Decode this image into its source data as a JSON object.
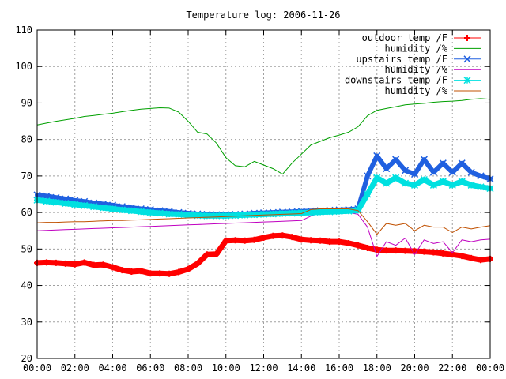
{
  "chart_data": {
    "type": "line",
    "title": "Temperature log: 2006-11-26",
    "xlabel": "",
    "ylabel": "",
    "xlim": [
      0,
      24
    ],
    "ylim": [
      20,
      110
    ],
    "grid": true,
    "legend_position": "top-right",
    "x_tick_labels": [
      "00:00",
      "02:00",
      "04:00",
      "06:00",
      "08:00",
      "10:00",
      "12:00",
      "14:00",
      "16:00",
      "18:00",
      "20:00",
      "22:00",
      "00:00"
    ],
    "y_tick_labels": [
      "20",
      "30",
      "40",
      "50",
      "60",
      "70",
      "80",
      "90",
      "100",
      "110"
    ],
    "series": [
      {
        "name": "outdoor temp /F",
        "color": "#ff0000",
        "marker": "plus",
        "x": [
          0,
          0.5,
          1,
          1.5,
          2,
          2.5,
          3,
          3.5,
          4,
          4.5,
          5,
          5.5,
          6,
          6.5,
          7,
          7.5,
          8,
          8.5,
          9,
          9.5,
          10,
          10.5,
          11,
          11.5,
          12,
          12.5,
          13,
          13.5,
          14,
          14.5,
          15,
          15.5,
          16,
          16.5,
          17,
          17.5,
          18,
          18.5,
          19,
          19.5,
          20,
          20.5,
          21,
          21.5,
          22,
          22.5,
          23,
          23.5,
          24
        ],
        "values": [
          46.2,
          46.3,
          46.2,
          46.0,
          45.8,
          46.3,
          45.6,
          45.7,
          45.0,
          44.2,
          43.8,
          44.0,
          43.3,
          43.3,
          43.2,
          43.7,
          44.5,
          46.0,
          48.5,
          48.6,
          52.3,
          52.4,
          52.3,
          52.5,
          53.1,
          53.6,
          53.7,
          53.3,
          52.6,
          52.4,
          52.3,
          52.0,
          52.0,
          51.6,
          51.0,
          50.3,
          49.8,
          49.6,
          49.6,
          49.5,
          49.4,
          49.3,
          49.1,
          48.8,
          48.5,
          48.1,
          47.5,
          47.0,
          47.3
        ]
      },
      {
        "name": "humidity /%",
        "color": "#00a000",
        "marker": "none",
        "x": [
          0,
          0.5,
          1,
          1.5,
          2,
          2.5,
          3,
          3.5,
          4,
          4.5,
          5,
          5.5,
          6,
          6.5,
          7,
          7.5,
          8,
          8.5,
          9,
          9.5,
          10,
          10.5,
          11,
          11.5,
          12,
          12.5,
          13,
          13.5,
          14,
          14.5,
          15,
          15.5,
          16,
          16.5,
          17,
          17.5,
          18,
          18.5,
          19,
          19.5,
          20,
          20.5,
          21,
          21.5,
          22,
          22.5,
          23,
          23.5,
          24
        ],
        "values": [
          84.0,
          84.5,
          85.0,
          85.4,
          85.8,
          86.3,
          86.6,
          86.9,
          87.2,
          87.6,
          88.0,
          88.3,
          88.5,
          88.7,
          88.6,
          87.5,
          85.0,
          82.0,
          81.5,
          79.0,
          75.0,
          72.8,
          72.5,
          74.0,
          73.0,
          72.0,
          70.5,
          73.5,
          76.0,
          78.5,
          79.5,
          80.5,
          81.2,
          82.0,
          83.5,
          86.5,
          88.0,
          88.5,
          89.0,
          89.5,
          89.7,
          89.9,
          90.2,
          90.4,
          90.5,
          90.7,
          91.0,
          91.2,
          91.0
        ]
      },
      {
        "name": "upstairs temp /F",
        "color": "#2060e0",
        "marker": "cross",
        "x": [
          0,
          0.5,
          1,
          1.5,
          2,
          2.5,
          3,
          3.5,
          4,
          4.5,
          5,
          5.5,
          6,
          6.5,
          7,
          7.5,
          8,
          8.5,
          9,
          9.5,
          10,
          10.5,
          11,
          11.5,
          12,
          12.5,
          13,
          13.5,
          14,
          14.5,
          15,
          15.5,
          16,
          16.5,
          17,
          17.5,
          18,
          18.5,
          19,
          19.5,
          20,
          20.5,
          21,
          21.5,
          22,
          22.5,
          23,
          23.5,
          24
        ],
        "values": [
          64.8,
          64.5,
          64.1,
          63.7,
          63.3,
          63.0,
          62.6,
          62.3,
          62.0,
          61.6,
          61.3,
          61.0,
          60.8,
          60.5,
          60.3,
          60.0,
          59.8,
          59.6,
          59.5,
          59.4,
          59.4,
          59.5,
          59.6,
          59.8,
          59.9,
          60.0,
          60.1,
          60.2,
          60.3,
          60.4,
          60.5,
          60.6,
          60.7,
          60.8,
          61.0,
          70.0,
          75.5,
          72.0,
          74.5,
          71.5,
          70.5,
          74.5,
          71.0,
          73.5,
          71.0,
          73.5,
          71.0,
          70.0,
          69.2
        ]
      },
      {
        "name": "humidity /%",
        "color": "#c000c0",
        "marker": "none",
        "x": [
          0,
          0.5,
          1,
          1.5,
          2,
          2.5,
          3,
          3.5,
          4,
          4.5,
          5,
          5.5,
          6,
          6.5,
          7,
          7.5,
          8,
          8.5,
          9,
          9.5,
          10,
          10.5,
          11,
          11.5,
          12,
          12.5,
          13,
          13.5,
          14,
          14.5,
          15,
          15.5,
          16,
          16.5,
          17,
          17.5,
          18,
          18.5,
          19,
          19.5,
          20,
          20.5,
          21,
          21.5,
          22,
          22.5,
          23,
          23.5,
          24
        ],
        "values": [
          55.0,
          55.1,
          55.2,
          55.3,
          55.4,
          55.5,
          55.6,
          55.7,
          55.8,
          55.9,
          56.0,
          56.1,
          56.2,
          56.3,
          56.4,
          56.5,
          56.6,
          56.7,
          56.8,
          56.9,
          57.0,
          57.1,
          57.2,
          57.3,
          57.4,
          57.5,
          57.6,
          57.7,
          57.8,
          59.0,
          60.0,
          60.0,
          60.0,
          60.0,
          59.5,
          56.0,
          48.0,
          52.0,
          51.0,
          53.0,
          48.5,
          52.5,
          51.5,
          52.0,
          49.0,
          52.5,
          52.0,
          52.5,
          52.7
        ]
      },
      {
        "name": "downstairs temp /F",
        "color": "#00e0e0",
        "marker": "star",
        "x": [
          0,
          0.5,
          1,
          1.5,
          2,
          2.5,
          3,
          3.5,
          4,
          4.5,
          5,
          5.5,
          6,
          6.5,
          7,
          7.5,
          8,
          8.5,
          9,
          9.5,
          10,
          10.5,
          11,
          11.5,
          12,
          12.5,
          13,
          13.5,
          14,
          14.5,
          15,
          15.5,
          16,
          16.5,
          17,
          17.5,
          18,
          18.5,
          19,
          19.5,
          20,
          20.5,
          21,
          21.5,
          22,
          22.5,
          23,
          23.5,
          24
        ],
        "values": [
          63.4,
          63.1,
          62.8,
          62.5,
          62.2,
          61.9,
          61.6,
          61.3,
          61.0,
          60.7,
          60.5,
          60.2,
          60.0,
          59.8,
          59.6,
          59.5,
          59.3,
          59.2,
          59.1,
          59.1,
          59.1,
          59.2,
          59.3,
          59.4,
          59.5,
          59.6,
          59.7,
          59.8,
          59.9,
          60.0,
          60.1,
          60.2,
          60.3,
          60.4,
          60.6,
          65.0,
          69.5,
          68.0,
          69.5,
          68.0,
          67.5,
          69.0,
          67.5,
          68.5,
          67.5,
          68.5,
          67.5,
          67.0,
          66.6
        ]
      },
      {
        "name": "humidity /%",
        "color": "#c05000",
        "marker": "none",
        "x": [
          0,
          0.5,
          1,
          1.5,
          2,
          2.5,
          3,
          3.5,
          4,
          4.5,
          5,
          5.5,
          6,
          6.5,
          7,
          7.5,
          8,
          8.5,
          9,
          9.5,
          10,
          10.5,
          11,
          11.5,
          12,
          12.5,
          13,
          13.5,
          14,
          14.5,
          15,
          15.5,
          16,
          16.5,
          17,
          17.5,
          18,
          18.5,
          19,
          19.5,
          20,
          20.5,
          21,
          21.5,
          22,
          22.5,
          23,
          23.5,
          24
        ],
        "values": [
          57.2,
          57.3,
          57.3,
          57.4,
          57.5,
          57.5,
          57.6,
          57.7,
          57.8,
          57.8,
          57.9,
          58.0,
          58.1,
          58.2,
          58.3,
          58.4,
          58.5,
          58.6,
          58.7,
          58.8,
          58.9,
          59.0,
          59.1,
          59.2,
          59.3,
          59.4,
          59.5,
          59.6,
          59.7,
          60.8,
          61.0,
          61.0,
          61.0,
          61.0,
          60.5,
          57.5,
          54.0,
          57.0,
          56.5,
          57.0,
          55.0,
          56.5,
          56.0,
          56.0,
          54.5,
          56.0,
          55.5,
          56.0,
          56.4
        ]
      }
    ]
  }
}
